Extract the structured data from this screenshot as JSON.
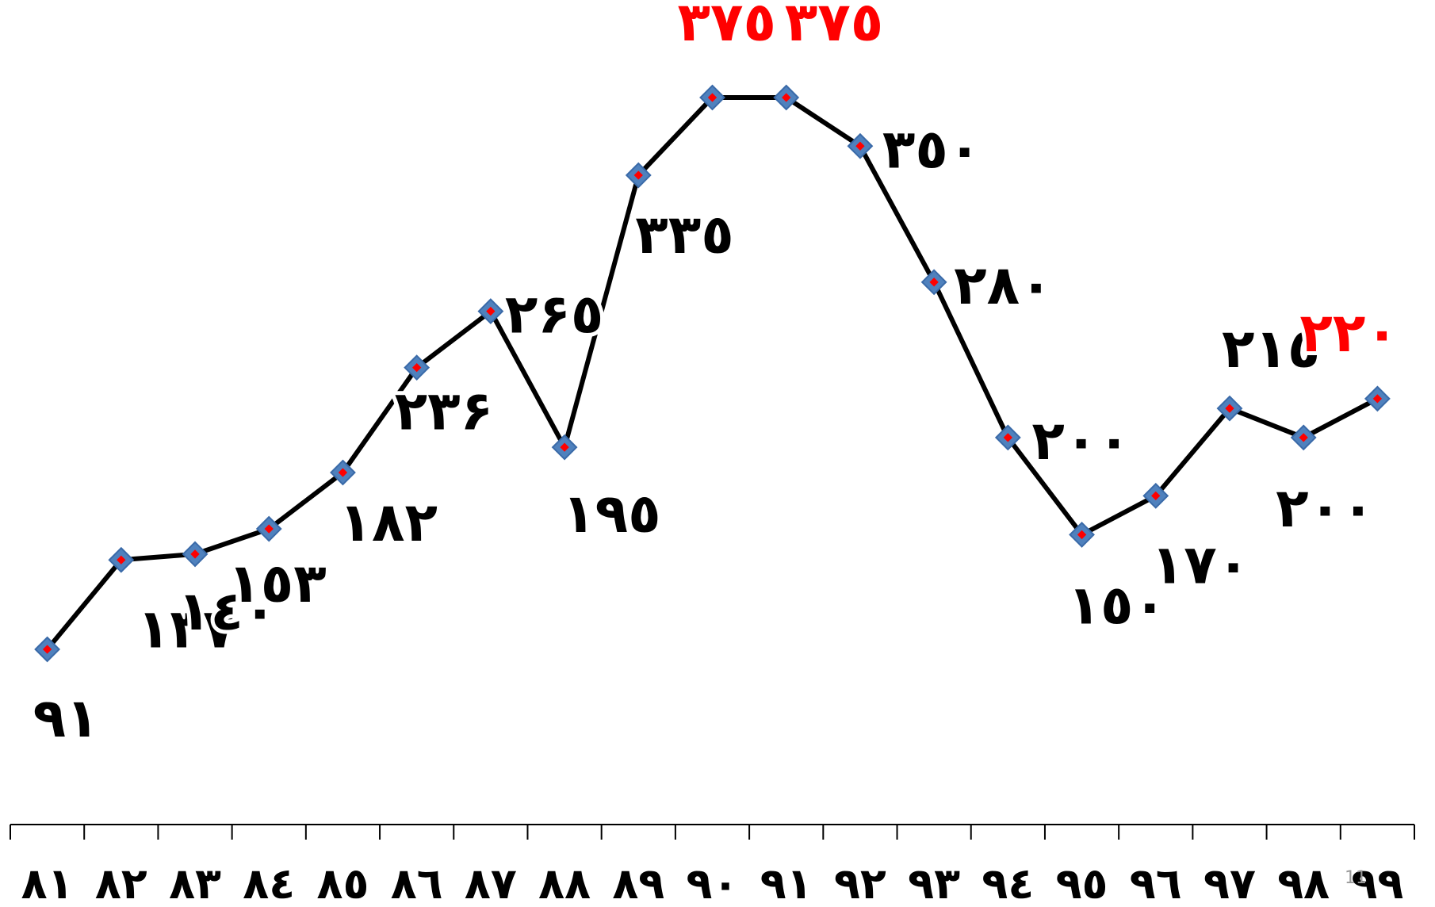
{
  "chart_data": {
    "type": "line",
    "categories": [
      "٨١",
      "٨٢",
      "٨٣",
      "٨٤",
      "٨٥",
      "٨٦",
      "٨٧",
      "٨٨",
      "٨٩",
      "٩٠",
      "٩١",
      "٩٢",
      "٩٣",
      "٩٤",
      "٩٥",
      "٩٦",
      "٩٧",
      "٩٨",
      "٩٩"
    ],
    "values": [
      91,
      137,
      140,
      153,
      182,
      236,
      265,
      195,
      335,
      375,
      375,
      350,
      280,
      200,
      150,
      170,
      215,
      200,
      220
    ],
    "data_labels": [
      "٩١",
      "١٣٧",
      "١٤٠",
      "١٥٣",
      "١٨٢",
      "٢٣۶",
      "٢۶٥",
      "١٩٥",
      "٣٣٥",
      "٣٧٥",
      "٣٧٥",
      "٣٥٠",
      "٢٨٠",
      "٢٠٠",
      "١٥٠",
      "١٧٠",
      "٢١٥",
      "٢٠٠",
      "٢٢٠"
    ],
    "highlighted_labels": [
      9,
      10,
      18
    ],
    "colors": {
      "line": "#000000",
      "marker_fill": "#4f81bd",
      "marker_center": "#ff0000",
      "highlight_label": "#ff0000",
      "axis": "#000000"
    },
    "ylim": [
      50,
      420
    ],
    "grid": false,
    "legend": "none"
  },
  "page_number": "11"
}
